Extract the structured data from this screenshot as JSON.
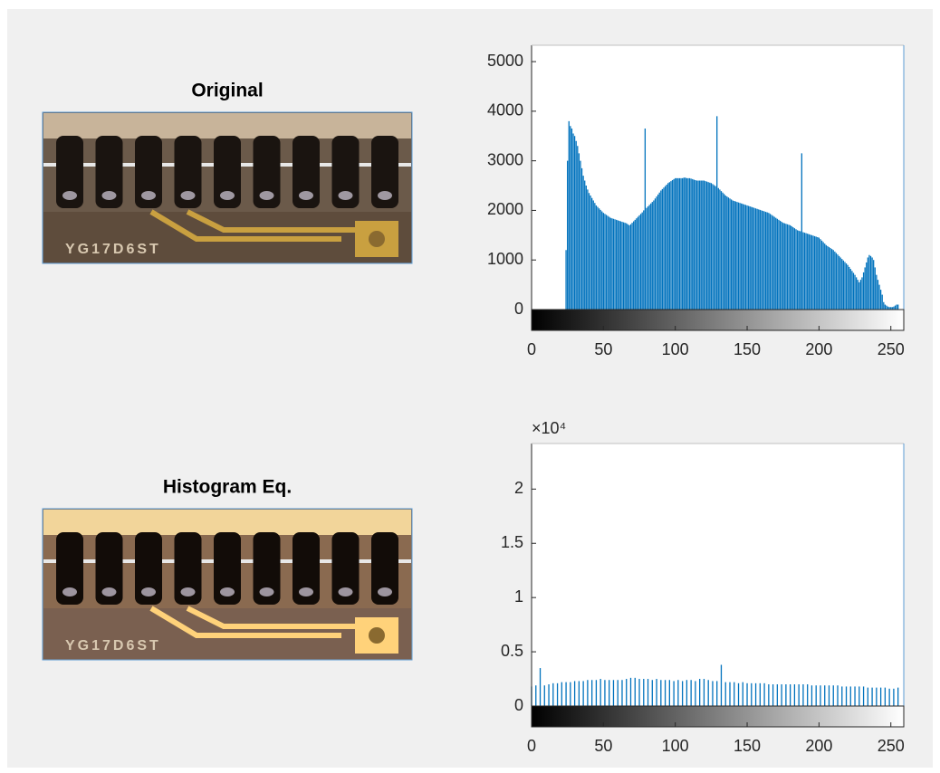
{
  "panels": [
    {
      "title": "Original",
      "marking": "YG17D6ST"
    },
    {
      "title": "Histogram Eq.",
      "marking": "YG17D6ST"
    }
  ],
  "chart_data": [
    {
      "type": "stem",
      "color": "#0072bd",
      "x": [
        0,
        1,
        2,
        3,
        4,
        5,
        6,
        7,
        8,
        9,
        10,
        11,
        12,
        13,
        14,
        15,
        16,
        17,
        18,
        19,
        20,
        21,
        22,
        23,
        24,
        25,
        26,
        27,
        28,
        29,
        30,
        31,
        32,
        33,
        34,
        35,
        36,
        37,
        38,
        39,
        40,
        41,
        42,
        43,
        44,
        45,
        46,
        47,
        48,
        49,
        50,
        51,
        52,
        53,
        54,
        55,
        56,
        57,
        58,
        59,
        60,
        61,
        62,
        63,
        64,
        65,
        66,
        67,
        68,
        69,
        70,
        71,
        72,
        73,
        74,
        75,
        76,
        77,
        78,
        79,
        80,
        81,
        82,
        83,
        84,
        85,
        86,
        87,
        88,
        89,
        90,
        91,
        92,
        93,
        94,
        95,
        96,
        97,
        98,
        99,
        100,
        101,
        102,
        103,
        104,
        105,
        106,
        107,
        108,
        109,
        110,
        111,
        112,
        113,
        114,
        115,
        116,
        117,
        118,
        119,
        120,
        121,
        122,
        123,
        124,
        125,
        126,
        127,
        128,
        129,
        130,
        131,
        132,
        133,
        134,
        135,
        136,
        137,
        138,
        139,
        140,
        141,
        142,
        143,
        144,
        145,
        146,
        147,
        148,
        149,
        150,
        151,
        152,
        153,
        154,
        155,
        156,
        157,
        158,
        159,
        160,
        161,
        162,
        163,
        164,
        165,
        166,
        167,
        168,
        169,
        170,
        171,
        172,
        173,
        174,
        175,
        176,
        177,
        178,
        179,
        180,
        181,
        182,
        183,
        184,
        185,
        186,
        187,
        188,
        189,
        190,
        191,
        192,
        193,
        194,
        195,
        196,
        197,
        198,
        199,
        200,
        201,
        202,
        203,
        204,
        205,
        206,
        207,
        208,
        209,
        210,
        211,
        212,
        213,
        214,
        215,
        216,
        217,
        218,
        219,
        220,
        221,
        222,
        223,
        224,
        225,
        226,
        227,
        228,
        229,
        230,
        231,
        232,
        233,
        234,
        235,
        236,
        237,
        238,
        239,
        240,
        241,
        242,
        243,
        244,
        245,
        246,
        247,
        248,
        249,
        250,
        251,
        252,
        253,
        254,
        255
      ],
      "values": [
        0,
        0,
        0,
        0,
        0,
        0,
        0,
        0,
        0,
        0,
        0,
        0,
        0,
        0,
        0,
        0,
        0,
        0,
        0,
        0,
        0,
        0,
        0,
        0,
        1200,
        3000,
        3800,
        3700,
        3650,
        3550,
        3500,
        3400,
        3300,
        3150,
        3000,
        2850,
        2700,
        2600,
        2500,
        2420,
        2350,
        2300,
        2250,
        2200,
        2150,
        2100,
        2070,
        2040,
        2010,
        1980,
        1950,
        1930,
        1910,
        1890,
        1870,
        1850,
        1840,
        1830,
        1820,
        1810,
        1800,
        1790,
        1780,
        1770,
        1760,
        1750,
        1740,
        1720,
        1700,
        1720,
        1750,
        1780,
        1810,
        1840,
        1870,
        1900,
        1930,
        1960,
        2000,
        3650,
        2050,
        2080,
        2110,
        2140,
        2170,
        2200,
        2240,
        2280,
        2320,
        2360,
        2400,
        2430,
        2460,
        2490,
        2520,
        2550,
        2570,
        2590,
        2610,
        2630,
        2650,
        2650,
        2650,
        2650,
        2650,
        2650,
        2660,
        2660,
        2650,
        2650,
        2650,
        2640,
        2630,
        2620,
        2610,
        2600,
        2600,
        2600,
        2600,
        2600,
        2600,
        2590,
        2580,
        2570,
        2560,
        2550,
        2530,
        2510,
        2490,
        3900,
        2450,
        2420,
        2390,
        2360,
        2330,
        2300,
        2280,
        2260,
        2240,
        2220,
        2200,
        2190,
        2180,
        2170,
        2160,
        2150,
        2140,
        2130,
        2120,
        2110,
        2100,
        2090,
        2080,
        2070,
        2060,
        2050,
        2040,
        2030,
        2020,
        2010,
        2000,
        1990,
        1980,
        1970,
        1960,
        1950,
        1930,
        1910,
        1890,
        1870,
        1850,
        1830,
        1810,
        1790,
        1770,
        1750,
        1740,
        1730,
        1720,
        1710,
        1700,
        1680,
        1660,
        1640,
        1620,
        1600,
        1590,
        1580,
        3150,
        1560,
        1550,
        1540,
        1530,
        1520,
        1510,
        1500,
        1490,
        1480,
        1470,
        1460,
        1450,
        1420,
        1390,
        1360,
        1330,
        1300,
        1280,
        1260,
        1240,
        1220,
        1200,
        1170,
        1140,
        1110,
        1080,
        1050,
        1020,
        990,
        960,
        930,
        900,
        860,
        820,
        780,
        740,
        700,
        650,
        600,
        550,
        600,
        650,
        750,
        850,
        950,
        1050,
        1100,
        1080,
        1050,
        1000,
        850,
        700,
        600,
        500,
        400,
        300,
        150,
        100,
        80,
        60,
        50,
        50,
        50,
        60,
        80,
        100,
        100
      ],
      "xlim": [
        0,
        259
      ],
      "ylim": [
        0,
        5330
      ],
      "xticks": [
        0,
        50,
        100,
        150,
        200,
        250
      ],
      "yticks": [
        0,
        1000,
        2000,
        3000,
        4000,
        5000
      ]
    },
    {
      "type": "stem",
      "color": "#0072bd",
      "y_exponent": "×10⁴",
      "x": [
        0,
        1,
        2,
        3,
        4,
        5,
        6,
        7,
        8,
        9,
        10,
        11,
        12,
        13,
        14,
        15,
        16,
        17,
        18,
        19,
        20,
        21,
        22,
        23,
        24,
        25,
        26,
        27,
        28,
        29,
        30,
        31,
        32,
        33,
        34,
        35,
        36,
        37,
        38,
        39,
        40,
        41,
        42,
        43,
        44,
        45,
        46,
        47,
        48,
        49,
        50,
        51,
        52,
        53,
        54,
        55,
        56,
        57,
        58,
        59,
        60,
        61,
        62,
        63,
        64,
        65,
        66,
        67,
        68,
        69,
        70,
        71,
        72,
        73,
        74,
        75,
        76,
        77,
        78,
        79,
        80,
        81,
        82,
        83,
        84,
        85,
        86,
        87,
        88,
        89,
        90,
        91,
        92,
        93,
        94,
        95,
        96,
        97,
        98,
        99,
        100,
        101,
        102,
        103,
        104,
        105,
        106,
        107,
        108,
        109,
        110,
        111,
        112,
        113,
        114,
        115,
        116,
        117,
        118,
        119,
        120,
        121,
        122,
        123,
        124,
        125,
        126,
        127,
        128,
        129,
        130,
        131,
        132,
        133,
        134,
        135,
        136,
        137,
        138,
        139,
        140,
        141,
        142,
        143,
        144,
        145,
        146,
        147,
        148,
        149,
        150,
        151,
        152,
        153,
        154,
        155,
        156,
        157,
        158,
        159,
        160,
        161,
        162,
        163,
        164,
        165,
        166,
        167,
        168,
        169,
        170,
        171,
        172,
        173,
        174,
        175,
        176,
        177,
        178,
        179,
        180,
        181,
        182,
        183,
        184,
        185,
        186,
        187,
        188,
        189,
        190,
        191,
        192,
        193,
        194,
        195,
        196,
        197,
        198,
        199,
        200,
        201,
        202,
        203,
        204,
        205,
        206,
        207,
        208,
        209,
        210,
        211,
        212,
        213,
        214,
        215,
        216,
        217,
        218,
        219,
        220,
        221,
        222,
        223,
        224,
        225,
        226,
        227,
        228,
        229,
        230,
        231,
        232,
        233,
        234,
        235,
        236,
        237,
        238,
        239,
        240,
        241,
        242,
        243,
        244,
        245,
        246,
        247,
        248,
        249,
        250,
        251,
        252,
        253,
        254,
        255
      ],
      "values": [
        0.18,
        0,
        0,
        0.19,
        0,
        0,
        0.35,
        0,
        0,
        0.19,
        0,
        0,
        0.2,
        0,
        0,
        0.21,
        0,
        0,
        0.21,
        0,
        0,
        0.22,
        0,
        0,
        0.22,
        0,
        0,
        0.22,
        0,
        0,
        0.23,
        0,
        0,
        0.23,
        0,
        0,
        0.23,
        0,
        0,
        0.24,
        0,
        0,
        0.24,
        0,
        0,
        0.24,
        0,
        0,
        0.25,
        0,
        0,
        0.24,
        0,
        0,
        0.24,
        0,
        0,
        0.24,
        0,
        0,
        0.24,
        0,
        0,
        0.24,
        0,
        0,
        0.25,
        0,
        0,
        0.26,
        0,
        0,
        0.26,
        0,
        0,
        0.25,
        0,
        0,
        0.25,
        0,
        0,
        0.25,
        0,
        0,
        0.24,
        0,
        0,
        0.25,
        0,
        0,
        0.24,
        0,
        0,
        0.24,
        0,
        0,
        0.24,
        0,
        0,
        0.23,
        0,
        0,
        0.24,
        0,
        0,
        0.23,
        0,
        0,
        0.24,
        0,
        0,
        0.24,
        0,
        0,
        0.23,
        0,
        0,
        0.25,
        0,
        0,
        0.25,
        0,
        0,
        0.24,
        0,
        0,
        0.23,
        0,
        0,
        0.23,
        0,
        0,
        0.38,
        0,
        0,
        0.22,
        0,
        0,
        0.22,
        0,
        0,
        0.22,
        0,
        0,
        0.21,
        0,
        0,
        0.22,
        0,
        0,
        0.21,
        0,
        0,
        0.21,
        0,
        0,
        0.21,
        0,
        0,
        0.21,
        0,
        0,
        0.21,
        0,
        0,
        0.2,
        0,
        0,
        0.2,
        0,
        0,
        0.2,
        0,
        0,
        0.2,
        0,
        0,
        0.2,
        0,
        0,
        0.2,
        0,
        0,
        0.2,
        0,
        0,
        0.2,
        0,
        0,
        0.2,
        0,
        0,
        0.2,
        0,
        0,
        0.19,
        0,
        0,
        0.19,
        0,
        0,
        0.19,
        0,
        0,
        0.19,
        0,
        0,
        0.19,
        0,
        0,
        0.19,
        0,
        0,
        0.19,
        0,
        0,
        0.18,
        0,
        0,
        0.18,
        0,
        0,
        0.18,
        0,
        0,
        0.18,
        0,
        0,
        0.18,
        0,
        0,
        0.18,
        0,
        0,
        0.17,
        0,
        0,
        0.17,
        0,
        0,
        0.17,
        0,
        0,
        0.17,
        0,
        0,
        0.17,
        0,
        0,
        0.16,
        0,
        0,
        0.16,
        0,
        0,
        0.17
      ],
      "xlim": [
        0,
        259
      ],
      "ylim": [
        0,
        2.42
      ],
      "xticks": [
        0,
        50,
        100,
        150,
        200,
        250
      ],
      "yticks": [
        0,
        0.5,
        1,
        1.5,
        2
      ]
    }
  ]
}
